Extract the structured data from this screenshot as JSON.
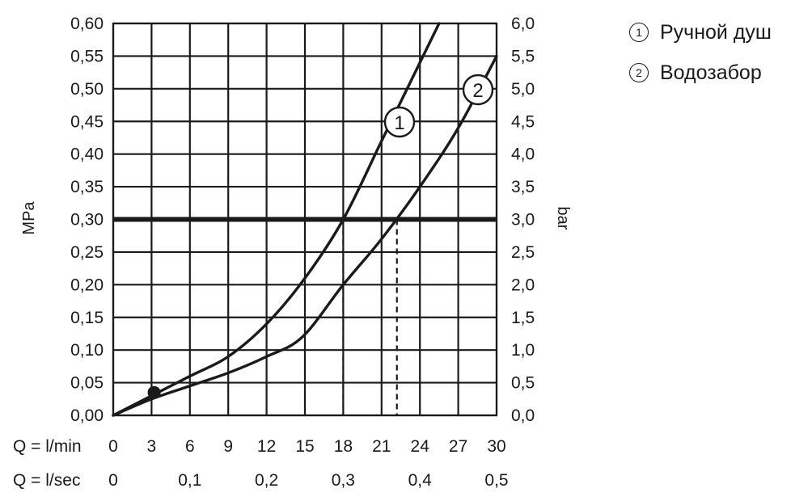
{
  "chart_data": {
    "type": "line",
    "ylabel_left": "MPa",
    "ylabel_right": "bar",
    "x_rows": [
      {
        "label": "Q = l/min",
        "ticks": [
          "0",
          "3",
          "6",
          "9",
          "12",
          "15",
          "18",
          "21",
          "24",
          "27",
          "30"
        ],
        "tick_values": [
          0,
          3,
          6,
          9,
          12,
          15,
          18,
          21,
          24,
          27,
          30
        ]
      },
      {
        "label": "Q = l/sec",
        "ticks": [
          "0",
          "0,1",
          "0,2",
          "0,3",
          "0,4",
          "0,5"
        ],
        "tick_values": [
          0,
          6,
          12,
          18,
          24,
          30
        ]
      }
    ],
    "xlim": [
      0,
      30
    ],
    "ylim_left": [
      0,
      0.6
    ],
    "ylim_right": [
      0,
      6
    ],
    "y_ticks_left": [
      "0,00",
      "0,05",
      "0,10",
      "0,15",
      "0,20",
      "0,25",
      "0,30",
      "0,35",
      "0,40",
      "0,45",
      "0,50",
      "0,55",
      "0,60"
    ],
    "y_ticks_right": [
      "0,0",
      "0,5",
      "1,0",
      "1,5",
      "2,0",
      "2,5",
      "3,0",
      "3,5",
      "4,0",
      "4,5",
      "5,0",
      "5,5",
      "6,0"
    ],
    "grid": true,
    "series": [
      {
        "name": "Ручной душ",
        "marker": "1",
        "x": [
          0,
          3,
          6,
          9,
          12,
          15,
          18,
          21,
          24,
          25.5
        ],
        "y": [
          0,
          0.03,
          0.06,
          0.09,
          0.14,
          0.21,
          0.3,
          0.42,
          0.54,
          0.6
        ]
      },
      {
        "name": "Водозабор",
        "marker": "2",
        "x": [
          0,
          3,
          6,
          9,
          12,
          14.8,
          18,
          21,
          24,
          27,
          30
        ],
        "y": [
          0,
          0.025,
          0.045,
          0.065,
          0.09,
          0.12,
          0.2,
          0.27,
          0.35,
          0.44,
          0.55
        ]
      }
    ],
    "reference_line": {
      "y": 0.3
    },
    "drop_lines_x": [
      18,
      22.2
    ],
    "dot_point": {
      "x": 3.2,
      "y": 0.035
    },
    "legend": {
      "placement": "top-right",
      "items": [
        {
          "marker": "1",
          "label": "Ручной душ"
        },
        {
          "marker": "2",
          "label": "Водозабор"
        }
      ]
    }
  }
}
